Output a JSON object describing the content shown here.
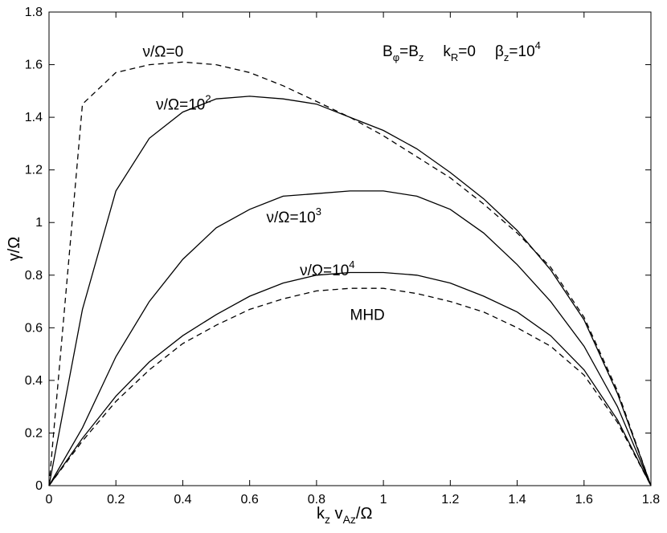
{
  "chart_data": {
    "type": "line",
    "title": "",
    "xlabel": {
      "main": "k",
      "sub1": "z",
      "mid": " v",
      "sub2": "Az",
      "tail": "/Ω"
    },
    "ylabel": "γ/Ω",
    "xlim": [
      0,
      1.8
    ],
    "ylim": [
      0,
      1.8
    ],
    "xticks": [
      0,
      0.2,
      0.4,
      0.6,
      0.8,
      1,
      1.2,
      1.4,
      1.6,
      1.8
    ],
    "xtick_labels": [
      "0",
      "0.2",
      "0.4",
      "0.6",
      "0.8",
      "1",
      "1.2",
      "1.4",
      "1.6",
      "1.8"
    ],
    "yticks": [
      0,
      0.2,
      0.4,
      0.6,
      0.8,
      1,
      1.2,
      1.4,
      1.6,
      1.8
    ],
    "ytick_labels": [
      "0",
      "0.2",
      "0.4",
      "0.6",
      "0.8",
      "1",
      "1.2",
      "1.4",
      "1.6",
      "1.8"
    ],
    "grid": false,
    "header_annotation": {
      "b1": "B",
      "b1_sub": "φ",
      "eq": "=B",
      "b2_sub": "z",
      "k": "k",
      "k_sub": "R",
      "k_val": "=0",
      "beta": "β",
      "beta_sub": "z",
      "beta_val": "=10",
      "beta_sup": "4"
    },
    "series": [
      {
        "label_base": "ν/Ω=0",
        "label_sup": "",
        "label_at": [
          0.28,
          1.63
        ],
        "style": "dashed",
        "x": [
          0,
          0.1,
          0.2,
          0.3,
          0.4,
          0.5,
          0.6,
          0.7,
          0.8,
          0.9,
          1.0,
          1.1,
          1.2,
          1.3,
          1.4,
          1.5,
          1.6,
          1.7,
          1.8
        ],
        "y": [
          0,
          1.45,
          1.57,
          1.6,
          1.61,
          1.6,
          1.57,
          1.52,
          1.46,
          1.4,
          1.33,
          1.25,
          1.17,
          1.07,
          0.96,
          0.83,
          0.64,
          0.36,
          0
        ]
      },
      {
        "label_base": "ν/Ω=10",
        "label_sup": "2",
        "label_at": [
          0.32,
          1.43
        ],
        "style": "solid",
        "x": [
          0,
          0.1,
          0.2,
          0.3,
          0.4,
          0.5,
          0.6,
          0.7,
          0.8,
          0.9,
          1.0,
          1.1,
          1.2,
          1.3,
          1.4,
          1.5,
          1.6,
          1.7,
          1.8
        ],
        "y": [
          0,
          0.67,
          1.12,
          1.32,
          1.42,
          1.47,
          1.48,
          1.47,
          1.45,
          1.4,
          1.35,
          1.28,
          1.19,
          1.09,
          0.97,
          0.82,
          0.63,
          0.35,
          0
        ]
      },
      {
        "label_base": "ν/Ω=10",
        "label_sup": "3",
        "label_at": [
          0.65,
          1.0
        ],
        "style": "solid",
        "x": [
          0,
          0.1,
          0.2,
          0.3,
          0.4,
          0.5,
          0.6,
          0.7,
          0.8,
          0.9,
          1.0,
          1.1,
          1.2,
          1.3,
          1.4,
          1.5,
          1.6,
          1.7,
          1.8
        ],
        "y": [
          0,
          0.22,
          0.49,
          0.7,
          0.86,
          0.98,
          1.05,
          1.1,
          1.11,
          1.12,
          1.12,
          1.1,
          1.05,
          0.96,
          0.84,
          0.7,
          0.53,
          0.3,
          0
        ]
      },
      {
        "label_base": "ν/Ω=10",
        "label_sup": "4",
        "label_at": [
          0.75,
          0.8
        ],
        "style": "solid",
        "x": [
          0,
          0.1,
          0.2,
          0.3,
          0.4,
          0.5,
          0.6,
          0.7,
          0.8,
          0.9,
          1.0,
          1.1,
          1.2,
          1.3,
          1.4,
          1.5,
          1.6,
          1.7,
          1.8
        ],
        "y": [
          0,
          0.18,
          0.34,
          0.47,
          0.57,
          0.65,
          0.72,
          0.77,
          0.8,
          0.81,
          0.81,
          0.8,
          0.77,
          0.72,
          0.66,
          0.57,
          0.44,
          0.25,
          0
        ]
      },
      {
        "label_base": "MHD",
        "label_sup": "",
        "label_at": [
          0.9,
          0.63
        ],
        "style": "dashed",
        "x": [
          0,
          0.1,
          0.2,
          0.3,
          0.4,
          0.5,
          0.6,
          0.7,
          0.8,
          0.9,
          1.0,
          1.1,
          1.2,
          1.3,
          1.4,
          1.5,
          1.6,
          1.7,
          1.8
        ],
        "y": [
          0,
          0.17,
          0.32,
          0.44,
          0.54,
          0.61,
          0.67,
          0.71,
          0.74,
          0.75,
          0.75,
          0.73,
          0.7,
          0.66,
          0.6,
          0.53,
          0.42,
          0.24,
          0
        ]
      }
    ]
  }
}
